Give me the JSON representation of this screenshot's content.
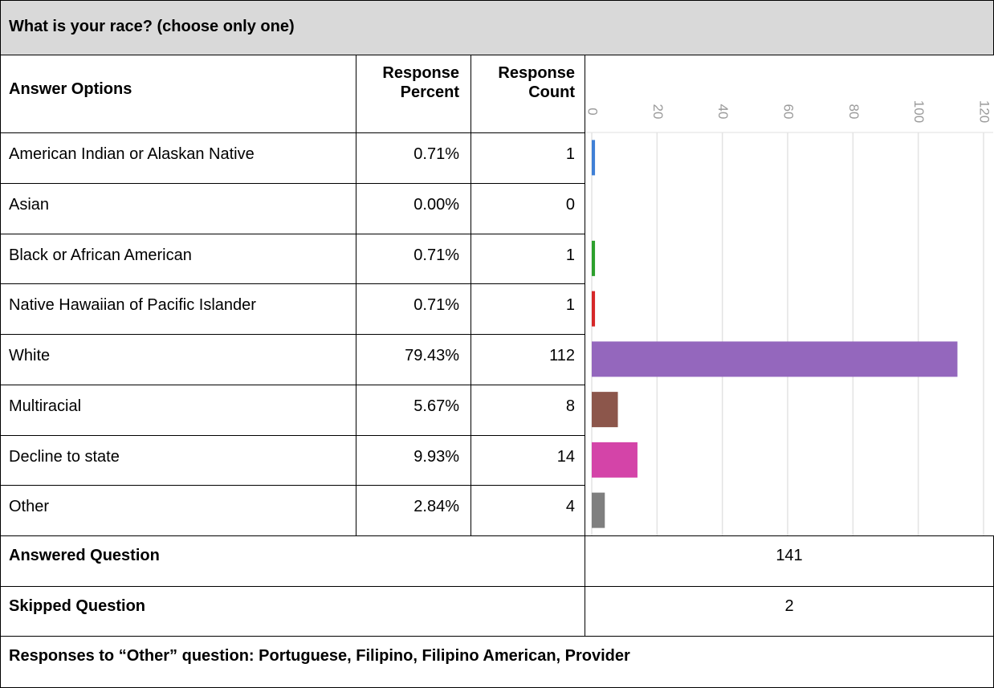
{
  "title": "What is your race? (choose only one)",
  "table": {
    "headers": [
      "Answer Options",
      "Response Percent",
      "Response Count"
    ],
    "rows": [
      {
        "option": "American Indian or Alaskan Native",
        "percent": "0.71%",
        "count": 1,
        "color": "#3f80d6"
      },
      {
        "option": "Asian",
        "percent": "0.00%",
        "count": 0
      },
      {
        "option": "Black or African American",
        "percent": "0.71%",
        "count": 1,
        "color": "#2ca02c"
      },
      {
        "option": "Native Hawaiian of Pacific Islander",
        "percent": "0.71%",
        "count": 1,
        "color": "#d62728"
      },
      {
        "option": "White",
        "percent": "79.43%",
        "count": 112,
        "color": "#9467bd"
      },
      {
        "option": "Multiracial",
        "percent": "5.67%",
        "count": 8,
        "color": "#8c564b"
      },
      {
        "option": "Decline to state",
        "percent": "9.93%",
        "count": 14,
        "color": "#d444a8"
      },
      {
        "option": "Other",
        "percent": "2.84%",
        "count": 4,
        "color": "#7f7f7f"
      }
    ]
  },
  "chart": {
    "xlim": [
      0,
      120
    ],
    "xticks": [
      0,
      20,
      40,
      60,
      80,
      100,
      120
    ],
    "grid": true
  },
  "summary": [
    {
      "label": "Answered Question",
      "value": 141
    },
    {
      "label": "Skipped Question",
      "value": 2
    }
  ],
  "note": "Responses to “Other” question: Portuguese, Filipino, Filipino American, Provider"
}
